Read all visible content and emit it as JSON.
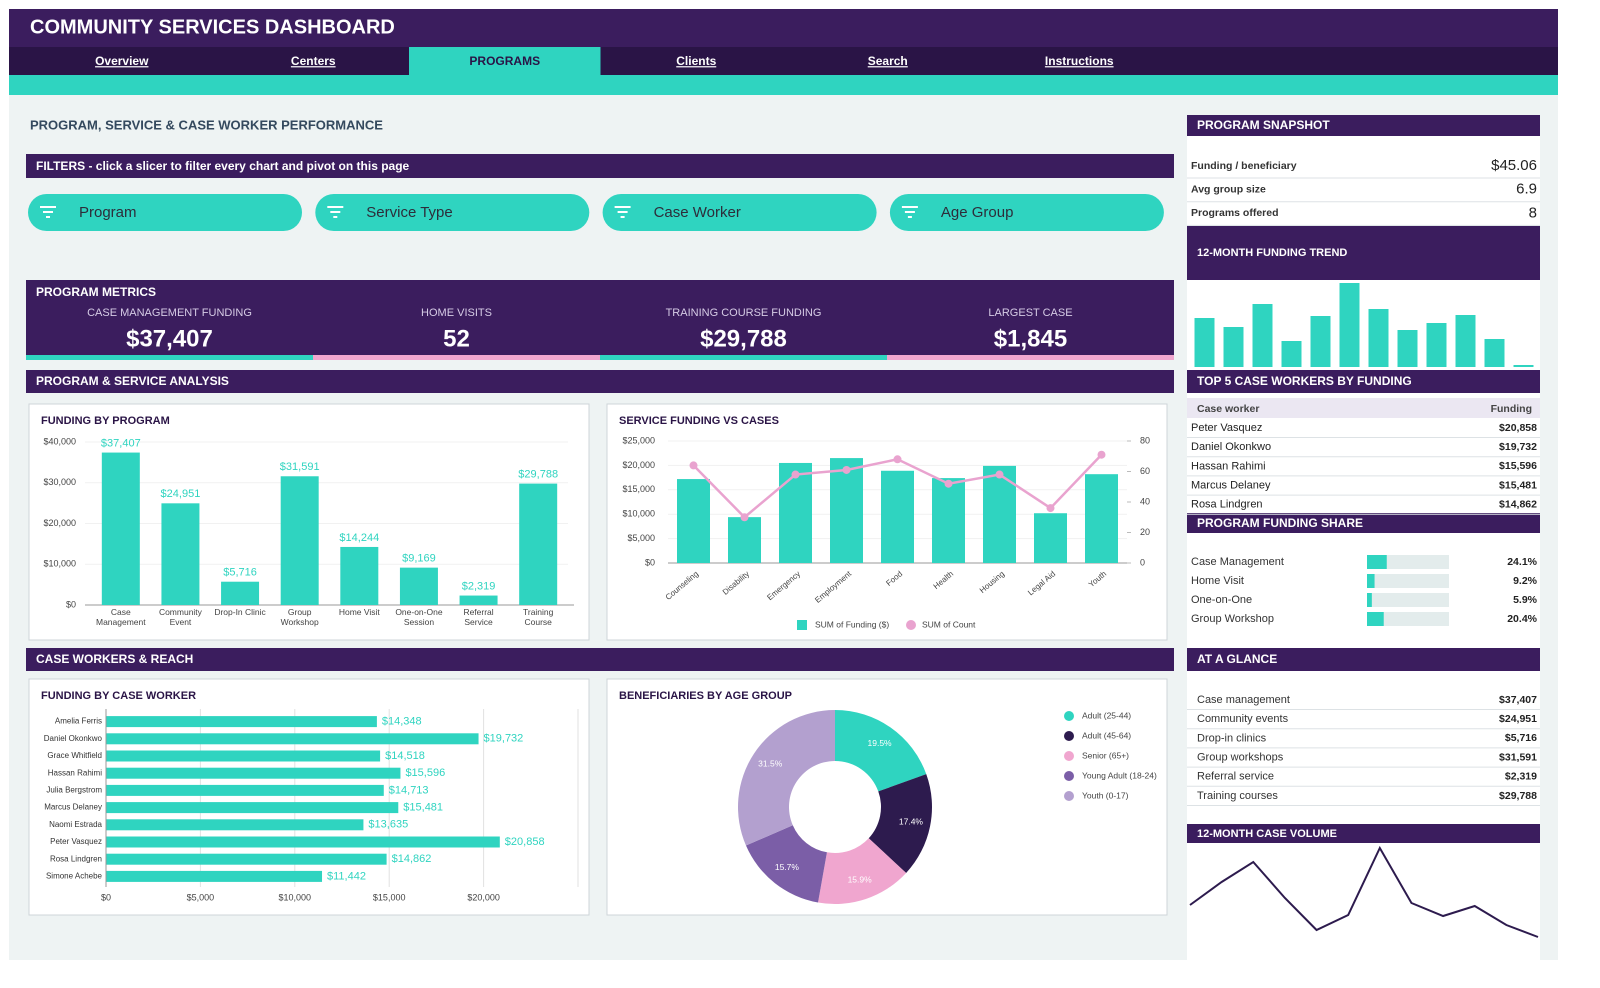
{
  "header": {
    "title": "COMMUNITY SERVICES DASHBOARD"
  },
  "tabs": [
    {
      "label": "Overview",
      "active": false
    },
    {
      "label": "Centers",
      "active": false
    },
    {
      "label": "PROGRAMS",
      "active": true
    },
    {
      "label": "Clients",
      "active": false
    },
    {
      "label": "Search",
      "active": false
    },
    {
      "label": "Instructions",
      "active": false
    }
  ],
  "page_heading": "PROGRAM, SERVICE & CASE WORKER PERFORMANCE",
  "filters": {
    "title": "FILTERS - click a slicer to filter every chart and pivot on this page",
    "slicers": [
      "Program",
      "Service Type",
      "Case Worker",
      "Age Group"
    ]
  },
  "metrics": {
    "title": "PROGRAM METRICS",
    "items": [
      {
        "label": "CASE MANAGEMENT FUNDING",
        "value": "$37,407"
      },
      {
        "label": "HOME VISITS",
        "value": "52"
      },
      {
        "label": "TRAINING COURSE FUNDING",
        "value": "$29,788"
      },
      {
        "label": "LARGEST CASE",
        "value": "$1,845"
      }
    ]
  },
  "sections": {
    "analysis": "PROGRAM & SERVICE ANALYSIS",
    "reach": "CASE WORKERS & REACH"
  },
  "snapshot": {
    "title": "PROGRAM SNAPSHOT",
    "rows": [
      {
        "label": "Funding / beneficiary",
        "value": "$45.06"
      },
      {
        "label": "Avg group size",
        "value": "6.9"
      },
      {
        "label": "Programs offered",
        "value": "8"
      }
    ]
  },
  "top5": {
    "title": "TOP 5 CASE WORKERS BY FUNDING",
    "columns": [
      "Case worker",
      "Funding"
    ],
    "rows": [
      [
        "Peter Vasquez",
        "$20,858"
      ],
      [
        "Daniel Okonkwo",
        "$19,732"
      ],
      [
        "Hassan Rahimi",
        "$15,596"
      ],
      [
        "Marcus Delaney",
        "$15,481"
      ],
      [
        "Rosa Lindgren",
        "$14,862"
      ]
    ]
  },
  "funding_share": {
    "title": "PROGRAM FUNDING SHARE",
    "xlim": [
      0,
      100
    ],
    "color": "#2fd4c0",
    "categories": [
      "Case Management",
      "Home Visit",
      "One-on-One",
      "Group Workshop"
    ],
    "values": [
      24.1,
      9.2,
      5.9,
      20.4
    ],
    "value_labels": [
      "24.1%",
      "9.2%",
      "5.9%",
      "20.4%"
    ]
  },
  "at_a_glance": {
    "title": "AT A GLANCE",
    "rows": [
      [
        "Case management",
        "$37,407"
      ],
      [
        "Community events",
        "$24,951"
      ],
      [
        "Drop-in clinics",
        "$5,716"
      ],
      [
        "Group workshops",
        "$31,591"
      ],
      [
        "Referral service",
        "$2,319"
      ],
      [
        "Training courses",
        "$29,788"
      ]
    ]
  },
  "chart_data": [
    {
      "type": "bar",
      "title": "FUNDING BY PROGRAM",
      "categories": [
        "Case Management",
        "Community Event",
        "Drop-In Clinic",
        "Group Workshop",
        "Home Visit",
        "One-on-One Session",
        "Referral Service",
        "Training Course"
      ],
      "values": [
        37407,
        24951,
        5716,
        31591,
        14244,
        9169,
        2319,
        29788
      ],
      "value_labels": [
        "$37,407",
        "$24,951",
        "$5,716",
        "$31,591",
        "$14,244",
        "$9,169",
        "$2,319",
        "$29,788"
      ],
      "color": "#2fd4c0",
      "ylim": [
        0,
        40000
      ],
      "yticks": [
        {
          "value": 0,
          "label": "$0"
        },
        {
          "value": 10000,
          "label": "$10,000"
        },
        {
          "value": 20000,
          "label": "$20,000"
        },
        {
          "value": 30000,
          "label": "$30,000"
        },
        {
          "value": 40000,
          "label": "$40,000"
        }
      ]
    },
    {
      "type": "combo",
      "title": "SERVICE FUNDING VS CASES",
      "categories": [
        "Counseling",
        "Disability",
        "Emergency",
        "Employment",
        "Food",
        "Health",
        "Housing",
        "Legal Aid",
        "Youth"
      ],
      "series": [
        {
          "name": "SUM of Funding ($)",
          "color": "#2fd4c0",
          "kind": "bar",
          "values": [
            17200,
            9400,
            20500,
            21500,
            18900,
            17400,
            19900,
            10200,
            18200
          ]
        },
        {
          "name": "SUM of Count",
          "color": "#e9a3cf",
          "kind": "line",
          "axis": "y2",
          "values": [
            64,
            30,
            58,
            61,
            68,
            52,
            58,
            36,
            71
          ]
        }
      ],
      "ylim": [
        0,
        25000
      ],
      "yticks": [
        {
          "value": 0,
          "label": "$0"
        },
        {
          "value": 5000,
          "label": "$5,000"
        },
        {
          "value": 10000,
          "label": "$10,000"
        },
        {
          "value": 15000,
          "label": "$15,000"
        },
        {
          "value": 20000,
          "label": "$20,000"
        },
        {
          "value": 25000,
          "label": "$25,000"
        }
      ],
      "y2lim": [
        0,
        80
      ],
      "y2ticks": [
        0,
        20,
        40,
        60,
        80
      ]
    },
    {
      "type": "hbar",
      "title": "FUNDING BY CASE WORKER",
      "categories": [
        "Amelia Ferris",
        "Daniel Okonkwo",
        "Grace Whitfield",
        "Hassan Rahimi",
        "Julia Bergstrom",
        "Marcus Delaney",
        "Naomi Estrada",
        "Peter Vasquez",
        "Rosa Lindgren",
        "Simone Achebe"
      ],
      "values": [
        14348,
        19732,
        14518,
        15596,
        14713,
        15481,
        13635,
        20858,
        14862,
        11442
      ],
      "value_labels": [
        "$14,348",
        "$19,732",
        "$14,518",
        "$15,596",
        "$14,713",
        "$15,481",
        "$13,635",
        "$20,858",
        "$14,862",
        "$11,442"
      ],
      "color": "#2fd4c0",
      "xlim": [
        0,
        25000
      ],
      "xticks": [
        {
          "value": 0,
          "label": "$0"
        },
        {
          "value": 5000,
          "label": "$5,000"
        },
        {
          "value": 10000,
          "label": "$10,000"
        },
        {
          "value": 15000,
          "label": "$15,000"
        },
        {
          "value": 20000,
          "label": "$20,000"
        }
      ]
    },
    {
      "type": "donut",
      "title": "BENEFICIARIES BY AGE GROUP",
      "categories": [
        "Adult (25-44)",
        "Adult (45-64)",
        "Senior (65+)",
        "Young Adult (18-24)",
        "Youth (0-17)"
      ],
      "values": [
        19.5,
        17.4,
        15.9,
        15.7,
        31.5
      ],
      "value_labels": [
        "19.5%",
        "17.4%",
        "15.9%",
        "15.7%",
        "31.5%"
      ],
      "colors": [
        "#2fd4c0",
        "#2d1b4e",
        "#f0a6cf",
        "#7b5ea7",
        "#b3a0cf"
      ]
    },
    {
      "type": "bar",
      "title": "12-MONTH FUNDING TREND",
      "categories": [
        null,
        null,
        null,
        null,
        null,
        null,
        null,
        null,
        null,
        null,
        null,
        null
      ],
      "values": [
        49,
        40,
        63,
        26,
        51,
        84,
        58,
        37,
        44,
        52,
        28,
        2
      ],
      "color": "#2fd4c0",
      "ylim": [
        0,
        87
      ]
    },
    {
      "type": "line",
      "title": "12-MONTH CASE VOLUME",
      "categories": [
        null,
        null,
        null,
        null,
        null,
        null,
        null,
        null,
        null,
        null,
        null,
        null
      ],
      "values": [
        35,
        58,
        78,
        42,
        10,
        25,
        92,
        37,
        24,
        34,
        15,
        3
      ],
      "color": "#2d1b4e",
      "ylim": [
        0,
        100
      ]
    }
  ]
}
